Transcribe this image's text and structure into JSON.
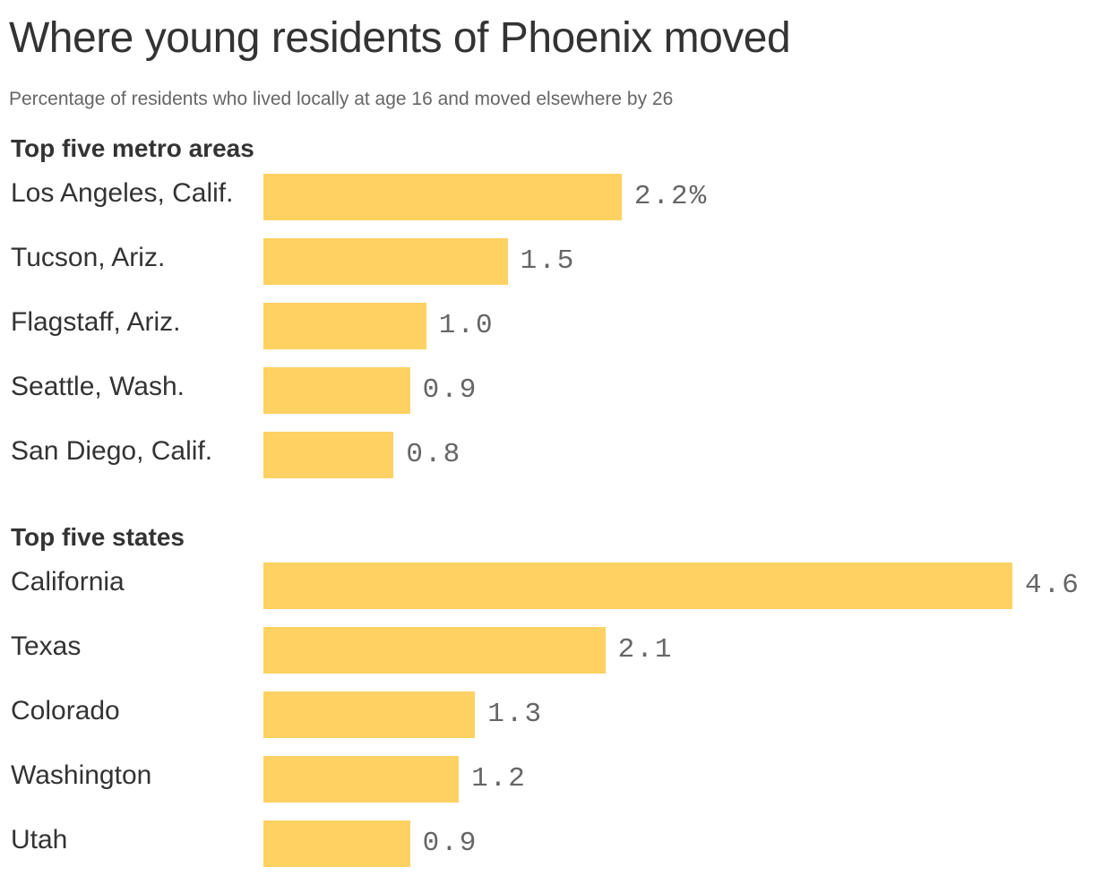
{
  "title": "Where young residents of Phoenix moved",
  "subtitle": "Percentage of residents who lived locally at age 16 and moved elsewhere by 26",
  "colors": {
    "bar": "#fdd162",
    "text": "#333333",
    "muted": "#666666"
  },
  "chart_data": [
    {
      "type": "bar",
      "orientation": "horizontal",
      "title": "Top five metro areas",
      "categories": [
        "Los Angeles, Calif.",
        "Tucson, Ariz.",
        "Flagstaff, Ariz.",
        "Seattle, Wash.",
        "San Diego, Calif."
      ],
      "values": [
        2.2,
        1.5,
        1.0,
        0.9,
        0.8
      ],
      "value_labels": [
        "2.2%",
        "1.5",
        "1.0",
        "0.9",
        "0.8"
      ],
      "xlim": [
        0,
        4.6
      ],
      "grid": false,
      "legend": "none"
    },
    {
      "type": "bar",
      "orientation": "horizontal",
      "title": "Top five states",
      "categories": [
        "California",
        "Texas",
        "Colorado",
        "Washington",
        "Utah"
      ],
      "values": [
        4.6,
        2.1,
        1.3,
        1.2,
        0.9
      ],
      "value_labels": [
        "4.6",
        "2.1",
        "1.3",
        "1.2",
        "0.9"
      ],
      "xlim": [
        0,
        4.6
      ],
      "grid": false,
      "legend": "none"
    }
  ]
}
